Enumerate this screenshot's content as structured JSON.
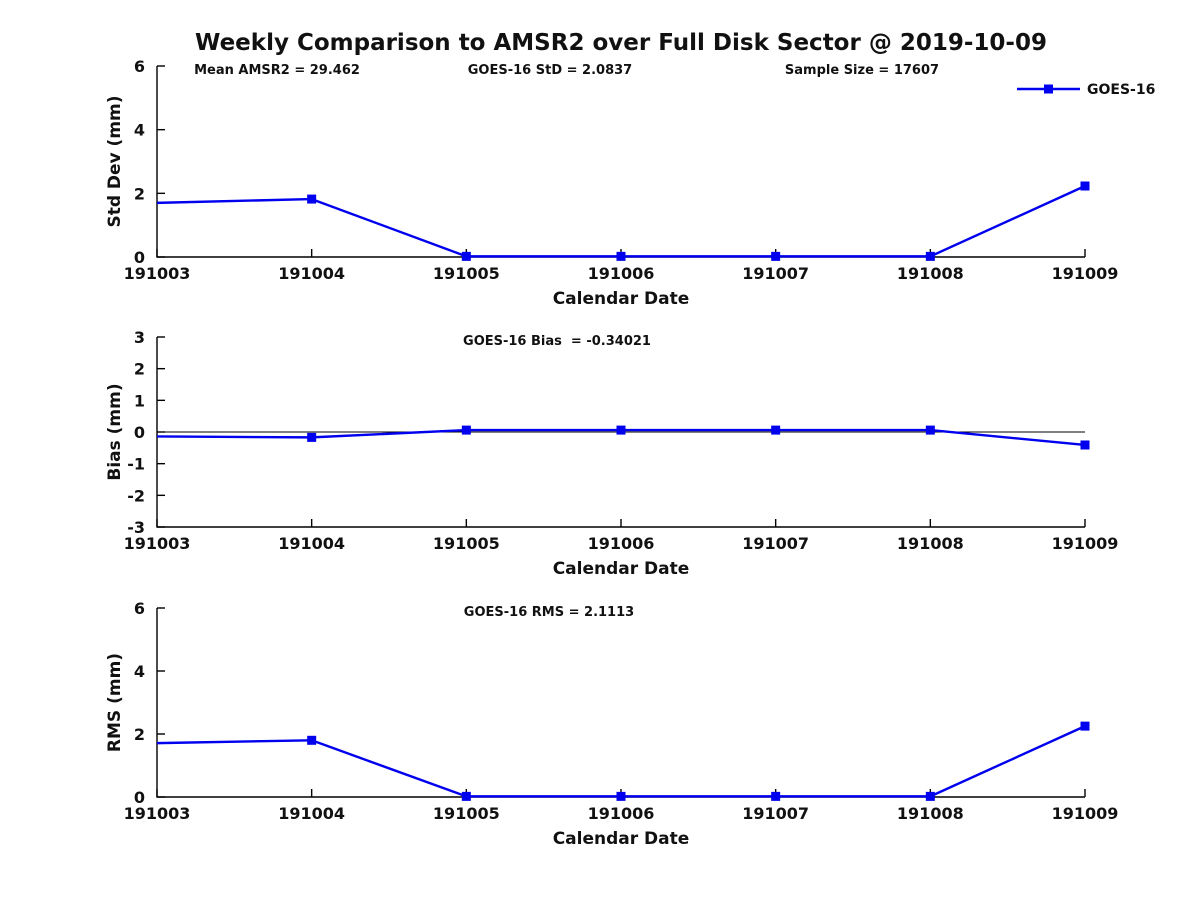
{
  "page": {
    "title": "Weekly Comparison to AMSR2 over Full Disk Sector @ 2019-10-09"
  },
  "colors": {
    "series": "#0000EE",
    "axis": "#000000",
    "text": "#111111",
    "background": "#ffffff"
  },
  "legend": {
    "label": "GOES-16",
    "position": "top-right"
  },
  "chart_data": [
    {
      "name": "std-dev",
      "type": "line",
      "title": "",
      "annotations": [
        "Mean AMSR2 = 29.462",
        "GOES-16 StD = 2.0837",
        "Sample Size = 17607"
      ],
      "xlabel": "Calendar Date",
      "ylabel": "Std Dev (mm)",
      "categories": [
        "191003",
        "191004",
        "191005",
        "191006",
        "191007",
        "191008",
        "191009"
      ],
      "series": [
        {
          "name": "GOES-16",
          "values": [
            1.7,
            1.82,
            0.02,
            0.02,
            0.02,
            0.02,
            2.23
          ]
        }
      ],
      "ylim": [
        0,
        6
      ],
      "yticks": [
        0,
        2,
        4,
        6
      ],
      "grid": false,
      "zero_line": false,
      "show_legend": true
    },
    {
      "name": "bias",
      "type": "line",
      "title": "",
      "annotations": [
        "GOES-16 Bias  = -0.34021"
      ],
      "xlabel": "Calendar Date",
      "ylabel": "Bias (mm)",
      "categories": [
        "191003",
        "191004",
        "191005",
        "191006",
        "191007",
        "191008",
        "191009"
      ],
      "series": [
        {
          "name": "GOES-16",
          "values": [
            -0.14,
            -0.17,
            0.06,
            0.06,
            0.06,
            0.06,
            -0.41
          ]
        }
      ],
      "ylim": [
        -3,
        3
      ],
      "yticks": [
        3,
        2,
        1,
        0,
        -1,
        -2,
        -3
      ],
      "grid": false,
      "zero_line": true,
      "show_legend": false
    },
    {
      "name": "rms",
      "type": "line",
      "title": "",
      "annotations": [
        "GOES-16 RMS = 2.1113"
      ],
      "xlabel": "Calendar Date",
      "ylabel": "RMS (mm)",
      "categories": [
        "191003",
        "191004",
        "191005",
        "191006",
        "191007",
        "191008",
        "191009"
      ],
      "series": [
        {
          "name": "GOES-16",
          "values": [
            1.71,
            1.8,
            0.02,
            0.02,
            0.02,
            0.02,
            2.25
          ]
        }
      ],
      "ylim": [
        0,
        6
      ],
      "yticks": [
        0,
        2,
        4,
        6
      ],
      "grid": false,
      "zero_line": false,
      "show_legend": false
    }
  ]
}
